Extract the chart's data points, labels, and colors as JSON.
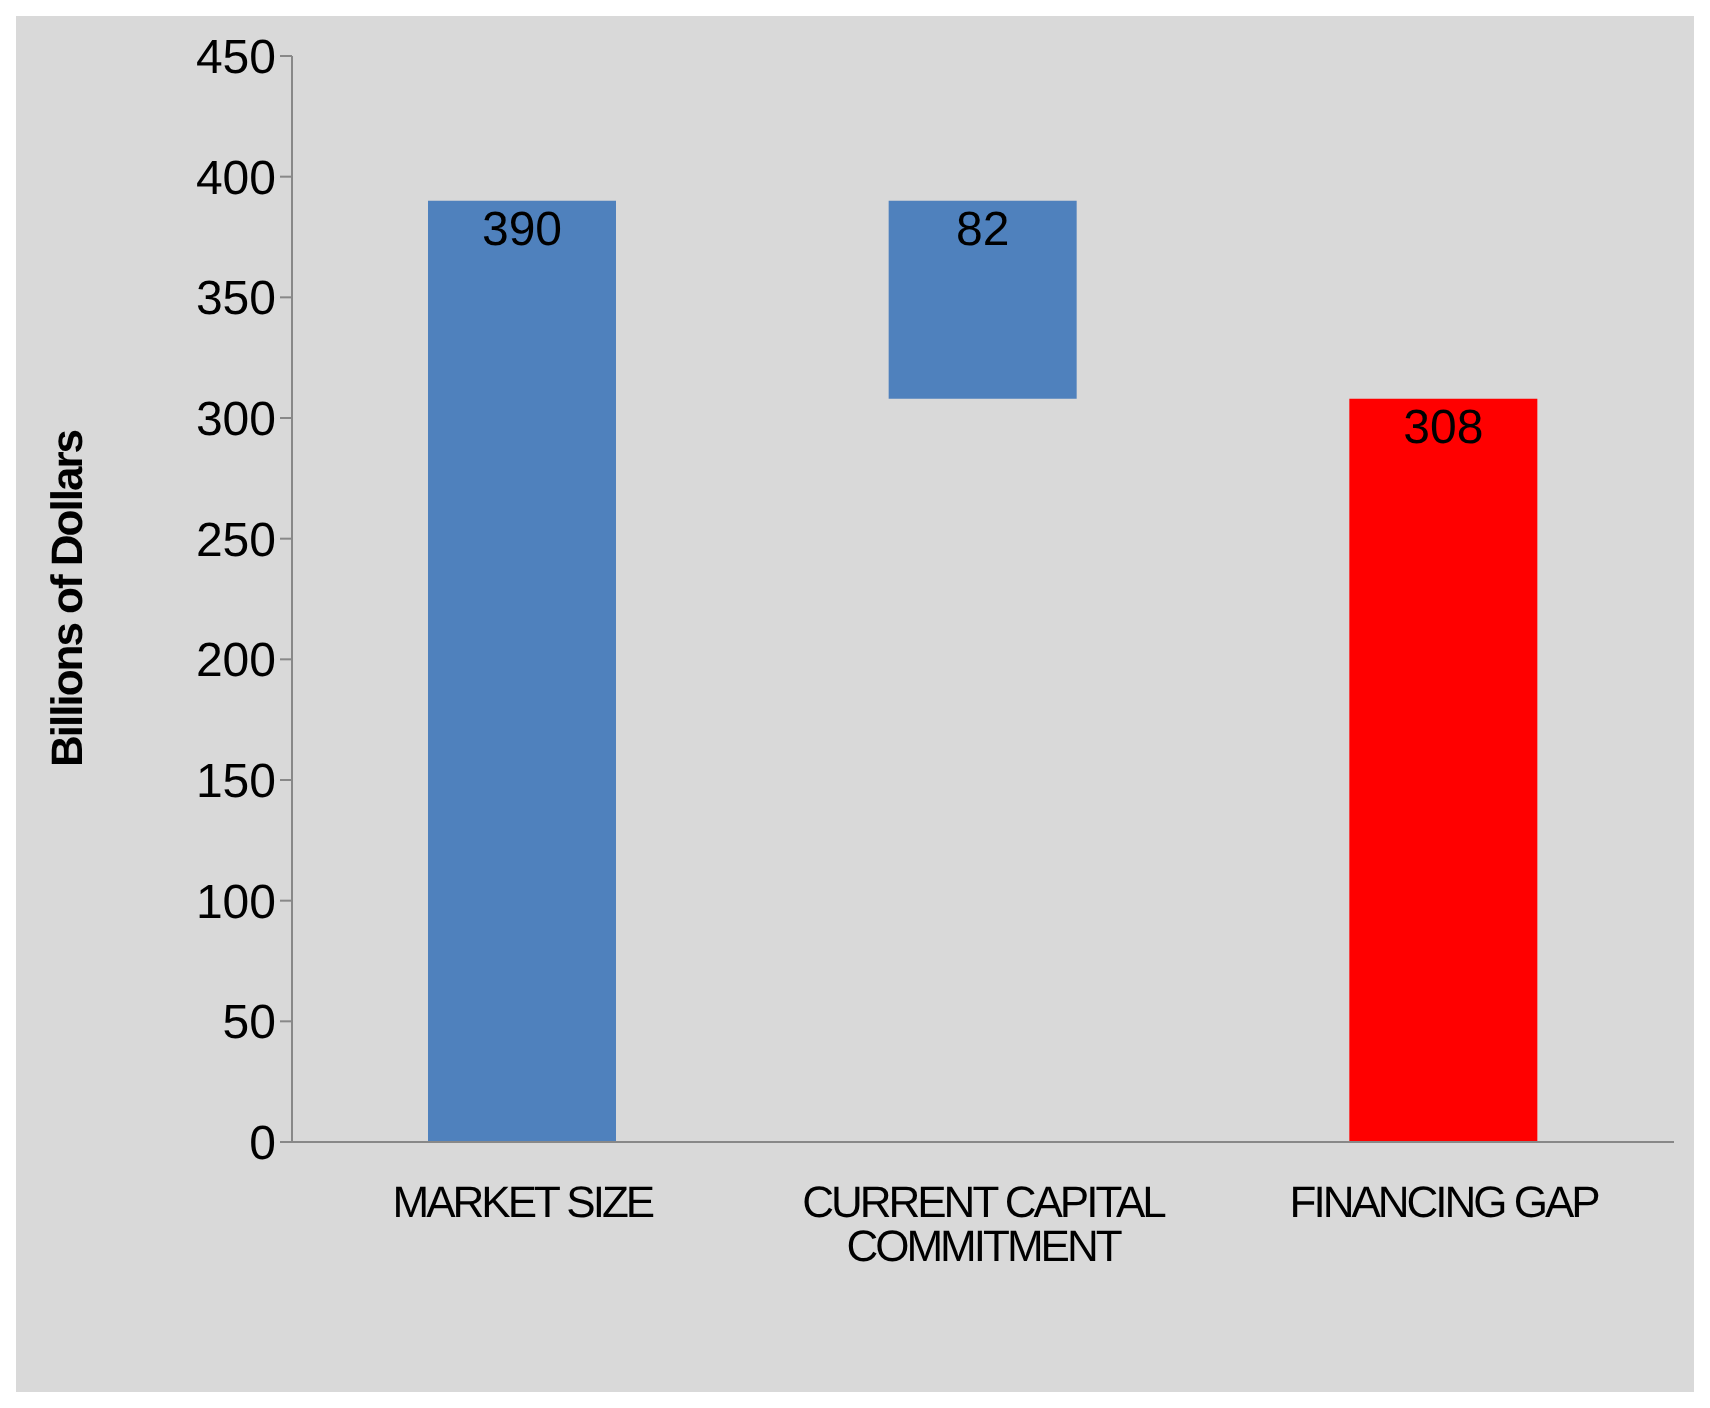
{
  "chart_data": {
    "type": "bar",
    "ylabel": "Billions of Dollars",
    "categories": [
      "MARKET SIZE",
      "CURRENT CAPITAL COMMITMENT",
      "FINANCING GAP"
    ],
    "values": [
      390,
      82,
      308
    ],
    "base": [
      0,
      308,
      0
    ],
    "colors": [
      "#4f81bd",
      "#4f81bd",
      "#ff0000"
    ],
    "data_labels": true,
    "ylim": [
      0,
      450
    ],
    "yticks": [
      0,
      50,
      100,
      150,
      200,
      250,
      300,
      350,
      400,
      450
    ],
    "grid": false,
    "legend": false
  }
}
